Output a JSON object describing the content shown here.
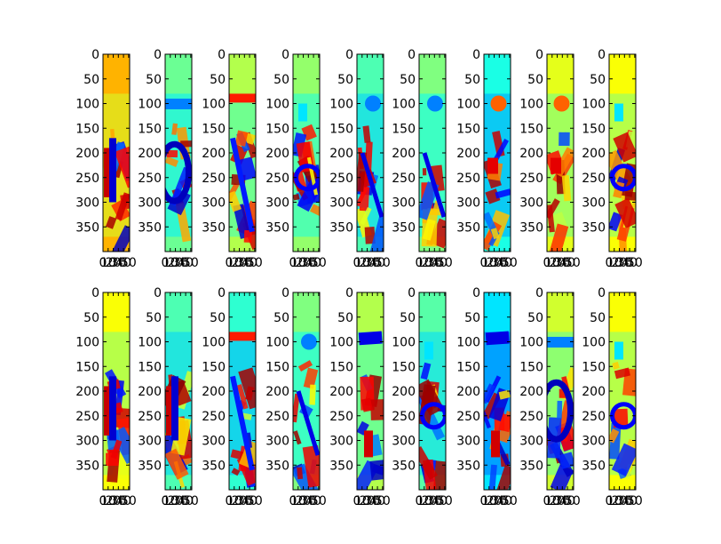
{
  "chart_data": {
    "type": "heatmap",
    "colormap": "jet",
    "layout": {
      "rows": 2,
      "cols": 9
    },
    "y_ticks": [
      "0",
      "50",
      "100",
      "150",
      "200",
      "250",
      "300",
      "350"
    ],
    "x_ticks": [
      "0",
      "10",
      "20",
      "30",
      "40",
      "50"
    ],
    "ylim": [
      400,
      0
    ],
    "xlim": [
      0,
      52
    ],
    "grid": false,
    "panels": [
      {
        "base": 0.7,
        "motif": "bars"
      },
      {
        "base": 0.48,
        "motif": "loop"
      },
      {
        "base": 0.55,
        "motif": "diag"
      },
      {
        "base": 0.52,
        "motif": "ring"
      },
      {
        "base": 0.45,
        "motif": "dot"
      },
      {
        "base": 0.5,
        "motif": "dot"
      },
      {
        "base": 0.4,
        "motif": "ydot"
      },
      {
        "base": 0.6,
        "motif": "ydot"
      },
      {
        "base": 0.62,
        "motif": "ring"
      },
      {
        "base": 0.62,
        "motif": "bars"
      },
      {
        "base": 0.45,
        "motif": "bars"
      },
      {
        "base": 0.42,
        "motif": "diag"
      },
      {
        "base": 0.5,
        "motif": "dot"
      },
      {
        "base": 0.55,
        "motif": "stroke"
      },
      {
        "base": 0.46,
        "motif": "ring"
      },
      {
        "base": 0.35,
        "motif": "stroke"
      },
      {
        "base": 0.58,
        "motif": "loop"
      },
      {
        "base": 0.62,
        "motif": "ring"
      }
    ]
  }
}
